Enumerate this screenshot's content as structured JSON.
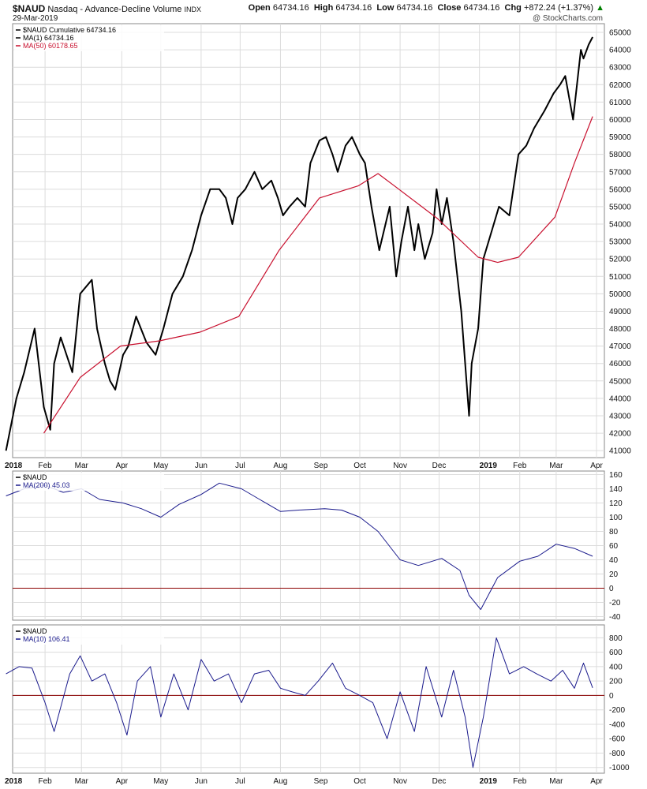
{
  "header": {
    "symbol": "$NAUD",
    "title": "Nasdaq - Advance-Decline Volume",
    "exchange": "INDX",
    "date": "29-Mar-2019",
    "open_label": "Open",
    "open": "64734.16",
    "high_label": "High",
    "high": "64734.16",
    "low_label": "Low",
    "low": "64734.16",
    "close_label": "Close",
    "close": "64734.16",
    "chg_label": "Chg",
    "chg": "+872.24 (+1.37%)",
    "watermark": "@ StockCharts.com"
  },
  "colors": {
    "price": "#000000",
    "ma50": "#c8102e",
    "indicator": "#1a1a8c",
    "zero": "#8b0000",
    "grid": "#dcdcdc",
    "accent_up": "#008000"
  },
  "chart_data": [
    {
      "type": "line",
      "panel": "main",
      "legend": [
        "$NAUD Cumulative 64734.16",
        "MA(1) 64734.16",
        "MA(50) 60178.65"
      ],
      "x_tick_labels": [
        "2018",
        "Feb",
        "Mar",
        "Apr",
        "May",
        "Jun",
        "Jul",
        "Aug",
        "Sep",
        "Oct",
        "Nov",
        "Dec",
        "2019",
        "Feb",
        "Mar",
        "Apr"
      ],
      "x_tick_dates": [
        "2018-01-01",
        "2018-02-01",
        "2018-03-01",
        "2018-04-01",
        "2018-05-01",
        "2018-06-01",
        "2018-07-01",
        "2018-08-01",
        "2018-09-01",
        "2018-10-01",
        "2018-11-01",
        "2018-12-01",
        "2019-01-01",
        "2019-02-01",
        "2019-03-01",
        "2019-04-01"
      ],
      "ylim": [
        40600,
        65500
      ],
      "yticks": [
        41000,
        42000,
        43000,
        44000,
        45000,
        46000,
        47000,
        48000,
        49000,
        50000,
        51000,
        52000,
        53000,
        54000,
        55000,
        56000,
        57000,
        58000,
        59000,
        60000,
        61000,
        62000,
        63000,
        64000,
        65000
      ],
      "series": [
        {
          "name": "$NAUD Cumulative",
          "x": [
            "2018-01-02",
            "2018-01-10",
            "2018-01-16",
            "2018-01-24",
            "2018-01-31",
            "2018-02-05",
            "2018-02-08",
            "2018-02-13",
            "2018-02-22",
            "2018-02-28",
            "2018-03-09",
            "2018-03-13",
            "2018-03-19",
            "2018-03-23",
            "2018-03-27",
            "2018-04-02",
            "2018-04-06",
            "2018-04-12",
            "2018-04-20",
            "2018-04-27",
            "2018-05-03",
            "2018-05-10",
            "2018-05-18",
            "2018-05-25",
            "2018-06-01",
            "2018-06-08",
            "2018-06-15",
            "2018-06-20",
            "2018-06-25",
            "2018-06-29",
            "2018-07-05",
            "2018-07-12",
            "2018-07-18",
            "2018-07-25",
            "2018-07-30",
            "2018-08-03",
            "2018-08-08",
            "2018-08-14",
            "2018-08-20",
            "2018-08-24",
            "2018-08-31",
            "2018-09-05",
            "2018-09-10",
            "2018-09-14",
            "2018-09-20",
            "2018-09-25",
            "2018-10-01",
            "2018-10-05",
            "2018-10-10",
            "2018-10-16",
            "2018-10-24",
            "2018-10-29",
            "2018-11-02",
            "2018-11-07",
            "2018-11-12",
            "2018-11-15",
            "2018-11-20",
            "2018-11-26",
            "2018-11-29",
            "2018-12-03",
            "2018-12-07",
            "2018-12-12",
            "2018-12-18",
            "2018-12-24",
            "2018-12-26",
            "2018-12-31",
            "2019-01-04",
            "2019-01-10",
            "2019-01-16",
            "2019-01-24",
            "2019-01-31",
            "2019-02-06",
            "2019-02-12",
            "2019-02-20",
            "2019-02-27",
            "2019-03-04",
            "2019-03-08",
            "2019-03-14",
            "2019-03-20",
            "2019-03-22",
            "2019-03-26",
            "2019-03-29"
          ],
          "values": [
            41000,
            44000,
            45500,
            48000,
            43500,
            42200,
            46000,
            47500,
            45500,
            50000,
            50800,
            48000,
            46000,
            45000,
            44500,
            46500,
            47000,
            48700,
            47200,
            46500,
            48000,
            50000,
            51000,
            52500,
            54500,
            56000,
            56000,
            55500,
            54000,
            55500,
            56000,
            57000,
            56000,
            56500,
            55500,
            54500,
            55000,
            55500,
            55000,
            57500,
            58800,
            59000,
            58000,
            57000,
            58500,
            59000,
            58000,
            57500,
            55000,
            52500,
            55000,
            51000,
            53000,
            55000,
            52500,
            54000,
            52000,
            53500,
            56000,
            54000,
            55500,
            53000,
            49000,
            43000,
            46000,
            48000,
            52000,
            53500,
            55000,
            54500,
            58000,
            58500,
            59500,
            60500,
            61500,
            62000,
            62500,
            60000,
            64000,
            63500,
            64300,
            64734
          ]
        },
        {
          "name": "MA(50)",
          "x": [
            "2018-01-31",
            "2018-02-28",
            "2018-03-31",
            "2018-04-30",
            "2018-05-31",
            "2018-06-30",
            "2018-07-31",
            "2018-08-31",
            "2018-09-30",
            "2018-10-15",
            "2018-10-31",
            "2018-11-30",
            "2018-12-31",
            "2019-01-15",
            "2019-01-31",
            "2019-02-28",
            "2019-03-15",
            "2019-03-29"
          ],
          "values": [
            42000,
            45200,
            47000,
            47300,
            47800,
            48700,
            52500,
            55500,
            56200,
            56900,
            56000,
            54300,
            52100,
            51800,
            52100,
            54400,
            57500,
            60178
          ]
        }
      ]
    },
    {
      "type": "line",
      "panel": "ma200",
      "legend": [
        "$NAUD",
        "MA(200) 45.03"
      ],
      "ylim": [
        -45,
        165
      ],
      "yticks": [
        -40,
        -20,
        0,
        20,
        40,
        60,
        80,
        100,
        120,
        140,
        160
      ],
      "series": [
        {
          "name": "MA(200)",
          "x": [
            "2018-01-02",
            "2018-01-16",
            "2018-02-01",
            "2018-02-15",
            "2018-03-01",
            "2018-03-15",
            "2018-04-02",
            "2018-04-16",
            "2018-05-01",
            "2018-05-15",
            "2018-06-01",
            "2018-06-15",
            "2018-07-02",
            "2018-07-16",
            "2018-08-01",
            "2018-08-15",
            "2018-09-04",
            "2018-09-17",
            "2018-10-01",
            "2018-10-15",
            "2018-11-01",
            "2018-11-15",
            "2018-12-03",
            "2018-12-17",
            "2018-12-24",
            "2019-01-02",
            "2019-01-15",
            "2019-02-01",
            "2019-02-15",
            "2019-03-01",
            "2019-03-15",
            "2019-03-29"
          ],
          "values": [
            130,
            140,
            145,
            135,
            140,
            125,
            120,
            112,
            100,
            118,
            132,
            148,
            140,
            125,
            108,
            110,
            112,
            110,
            100,
            80,
            40,
            32,
            42,
            25,
            -10,
            -30,
            15,
            38,
            45,
            62,
            56,
            45
          ]
        }
      ]
    },
    {
      "type": "line",
      "panel": "ma10",
      "legend": [
        "$NAUD",
        "MA(10) 106.41"
      ],
      "ylim": [
        -1080,
        980
      ],
      "yticks": [
        -1000,
        -800,
        -600,
        -400,
        -200,
        0,
        200,
        400,
        600,
        800
      ],
      "series": [
        {
          "name": "MA(10)",
          "x": [
            "2018-01-02",
            "2018-01-12",
            "2018-01-22",
            "2018-02-01",
            "2018-02-08",
            "2018-02-20",
            "2018-02-28",
            "2018-03-09",
            "2018-03-19",
            "2018-03-28",
            "2018-04-05",
            "2018-04-13",
            "2018-04-23",
            "2018-05-01",
            "2018-05-11",
            "2018-05-22",
            "2018-06-01",
            "2018-06-11",
            "2018-06-22",
            "2018-07-02",
            "2018-07-12",
            "2018-07-23",
            "2018-08-01",
            "2018-08-10",
            "2018-08-20",
            "2018-08-30",
            "2018-09-10",
            "2018-09-20",
            "2018-10-01",
            "2018-10-11",
            "2018-10-22",
            "2018-11-01",
            "2018-11-12",
            "2018-11-21",
            "2018-12-03",
            "2018-12-12",
            "2018-12-21",
            "2018-12-27",
            "2019-01-04",
            "2019-01-14",
            "2019-01-24",
            "2019-02-04",
            "2019-02-14",
            "2019-02-25",
            "2019-03-06",
            "2019-03-15",
            "2019-03-22",
            "2019-03-29"
          ],
          "values": [
            300,
            400,
            380,
            -100,
            -500,
            300,
            550,
            200,
            300,
            -100,
            -550,
            200,
            400,
            -300,
            300,
            -200,
            500,
            200,
            300,
            -100,
            300,
            350,
            100,
            50,
            0,
            200,
            450,
            100,
            0,
            -100,
            -600,
            50,
            -500,
            400,
            -300,
            350,
            -300,
            -1000,
            -300,
            800,
            300,
            400,
            300,
            200,
            350,
            100,
            450,
            106
          ]
        }
      ]
    }
  ]
}
